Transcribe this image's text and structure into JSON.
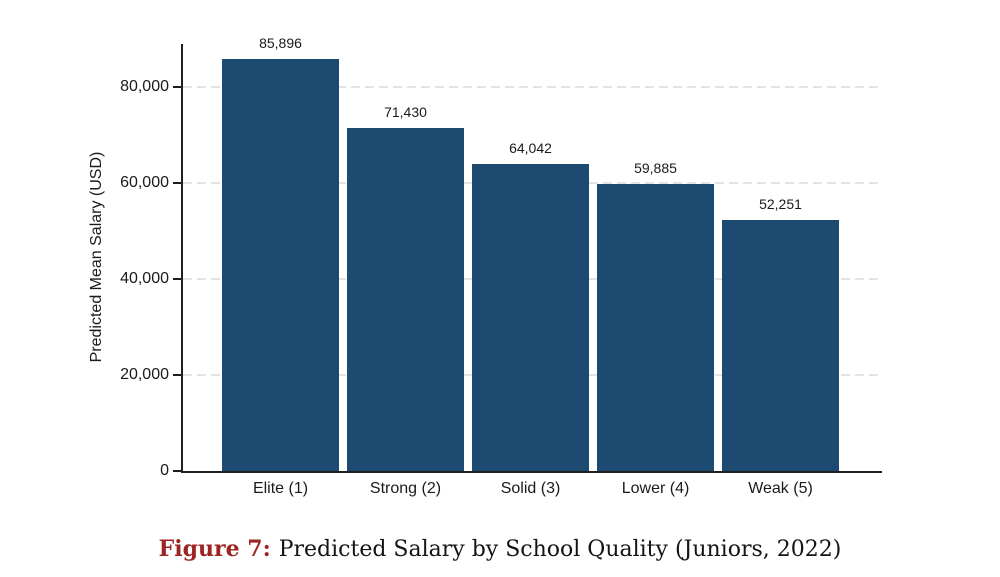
{
  "chart_data": {
    "type": "bar",
    "title": "",
    "categories": [
      "Elite (1)",
      "Strong (2)",
      "Solid (3)",
      "Lower (4)",
      "Weak (5)"
    ],
    "values": [
      85896,
      71430,
      64042,
      59885,
      52251
    ],
    "value_labels": [
      "85,896",
      "71,430",
      "64,042",
      "59,885",
      "52,251"
    ],
    "xlabel": "",
    "ylabel": "Predicted Mean Salary (USD)",
    "ylim": [
      0,
      90000
    ],
    "yticks": [
      0,
      20000,
      40000,
      60000,
      80000
    ],
    "ytick_labels": [
      "0",
      "20,000",
      "40,000",
      "60,000",
      "80,000"
    ],
    "grid": "horizontal-dashed",
    "legend_position": "none"
  },
  "caption": {
    "prefix": "Figure 7:",
    "text": "Predicted Salary by School Quality (Juniors, 2022)"
  },
  "colors": {
    "bar": "#1c4a70",
    "axis": "#1f1f1f",
    "gridline": "#e3e3e3",
    "background": "#ffffff",
    "caption_accent": "#9e2422"
  }
}
